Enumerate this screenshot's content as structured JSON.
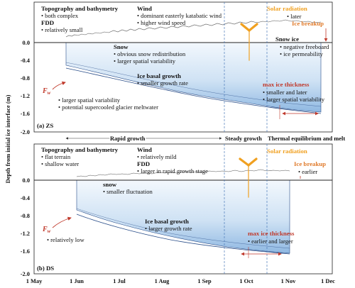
{
  "ylabel": "Depth from initial ice interface (m)",
  "yticks": [
    "0.0",
    "-0.4",
    "-0.8",
    "-1.2",
    "-1.6",
    "-2.0"
  ],
  "xticks": [
    "1 May",
    "1 Jun",
    "1 Jul",
    "1 Aug",
    "1 Sep",
    "1 Oct",
    "1 Nov",
    "1 Dec"
  ],
  "phases": [
    "Rapid growth",
    "Steady growth",
    "Thermal equilibrium and melt"
  ],
  "bullet": "•",
  "panel_a": {
    "tag": "(a)  ZS",
    "topo_title": "Topography and bathymetry",
    "topo_items": [
      "both complex"
    ],
    "fdd_title": "FDD",
    "fdd_items": [
      "relatively small"
    ],
    "wind_title": "Wind",
    "wind_items": [
      "dominant easterly katabatic wind",
      "higher wind speed"
    ],
    "solar_title": "Solar radiation",
    "solar_items": [
      "later"
    ],
    "breakup_title": "Ice breakup",
    "snow_title": "Snow",
    "snow_items": [
      "obvious snow redistribution",
      "larger spatial variability"
    ],
    "snowice_title": "Snow ice",
    "snowice_items": [
      "negative freeboard",
      "ice permeability"
    ],
    "basal_title": "Ice basal growth",
    "basal_items": [
      "smaller growth rate"
    ],
    "fw_main": "F",
    "fw_sub": "w",
    "fw_items": [
      "larger spatial variability",
      "potential supercooled glacier meltwater"
    ],
    "maxice_title": "max ice thickness",
    "maxice_items": [
      "smaller and later",
      "larger spatial variability"
    ]
  },
  "panel_b": {
    "tag": "(b)  DS",
    "topo_title": "Topography and bathymetry",
    "topo_items": [
      "flat terrain",
      "shallow water"
    ],
    "wind_title": "Wind",
    "wind_items": [
      "relatively mild"
    ],
    "fdd_title": "FDD",
    "fdd_items": [
      "larger in rapid growth stage"
    ],
    "solar_title": "Solar radiation",
    "breakup_title": "Ice breakup",
    "breakup_items": [
      "earlier"
    ],
    "snow_title": "snow",
    "snow_items": [
      "smaller fluctuation"
    ],
    "basal_title": "Ice basal growth",
    "basal_items": [
      "larger growth rate"
    ],
    "fw_main": "F",
    "fw_sub": "w",
    "fw_items": [
      "relatively low"
    ],
    "maxice_title": "max ice thickness",
    "maxice_items": [
      "earlier and larger"
    ]
  },
  "colors": {
    "ice_top": "#eef5fc",
    "ice_bottom": "#9cc3e8",
    "ice_edge": "#2b4f8a",
    "dashed": "#4a7ab8",
    "solar": "#f0a020",
    "accent_red": "#c0392b"
  }
}
